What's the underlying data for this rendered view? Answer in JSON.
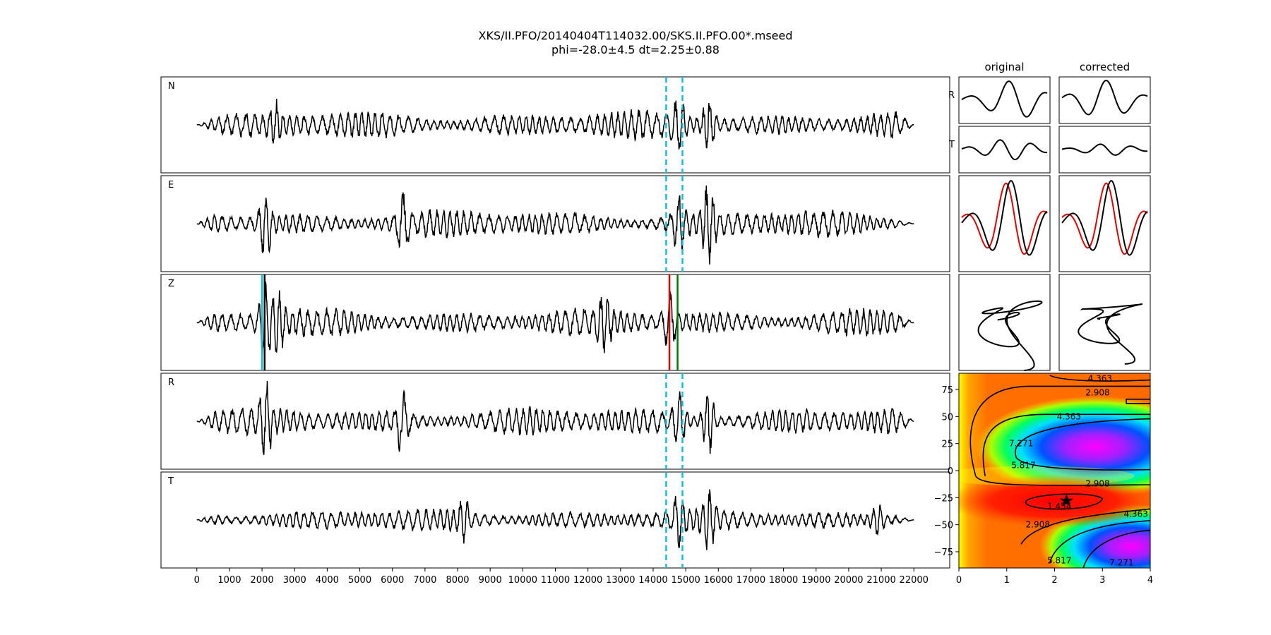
{
  "title": {
    "line1": "XKS/II.PFO/20140404T114032.00/SKS.II.PFO.00*.mseed",
    "line2": "phi=-28.0±4.5 dt=2.25±0.88"
  },
  "colors": {
    "trace": "#000000",
    "window_line": "#17becf",
    "pick_red": "#e00000",
    "pick_green": "#007a00",
    "pick_cyan": "#17becf",
    "overlay_red": "#e00000"
  },
  "chart_data": [
    {
      "type": "line",
      "id": "traces",
      "x_ticks": [
        0,
        1000,
        2000,
        3000,
        4000,
        5000,
        6000,
        7000,
        8000,
        9000,
        10000,
        11000,
        12000,
        13000,
        14000,
        15000,
        16000,
        17000,
        18000,
        19000,
        20000,
        21000,
        22000
      ],
      "x_tick_labels": [
        "0",
        "1000",
        "2000",
        "3000",
        "4000",
        "5000",
        "6000",
        "7000",
        "8000",
        "9000",
        "10000",
        "11000",
        "12000",
        "13000",
        "14000",
        "15000",
        "16000",
        "17000",
        "18000",
        "19000",
        "20000",
        "21000",
        "22000"
      ],
      "xlim": [
        -1100,
        23100
      ],
      "x_start": 0,
      "x_end": 22000,
      "panels": [
        {
          "label": "N",
          "amplitude": 0.3,
          "seed": 11,
          "bursts": [
            [
              15700,
              0.55
            ],
            [
              14800,
              0.5
            ],
            [
              2400,
              0.35
            ]
          ]
        },
        {
          "label": "E",
          "amplitude": 0.3,
          "seed": 23,
          "bursts": [
            [
              2100,
              0.75
            ],
            [
              6300,
              0.6
            ],
            [
              15700,
              0.8
            ],
            [
              14800,
              0.55
            ]
          ]
        },
        {
          "label": "Z",
          "amplitude": 0.3,
          "seed": 37,
          "bursts": [
            [
              2100,
              0.85
            ],
            [
              2500,
              0.6
            ],
            [
              12500,
              0.45
            ],
            [
              14500,
              0.55
            ]
          ]
        },
        {
          "label": "R",
          "amplitude": 0.3,
          "seed": 41,
          "bursts": [
            [
              2100,
              0.7
            ],
            [
              6300,
              0.6
            ],
            [
              15700,
              0.75
            ],
            [
              14800,
              0.6
            ]
          ]
        },
        {
          "label": "T",
          "amplitude": 0.22,
          "seed": 53,
          "bursts": [
            [
              8200,
              0.35
            ],
            [
              15700,
              0.5
            ],
            [
              14800,
              0.5
            ],
            [
              20900,
              0.35
            ]
          ]
        }
      ],
      "window_lines": [
        14400,
        14900
      ],
      "z_picks": [
        {
          "x": 2000,
          "color": "cyan"
        },
        {
          "x": 2080,
          "color": "black"
        },
        {
          "x": 14500,
          "color": "red"
        },
        {
          "x": 14750,
          "color": "green"
        }
      ]
    },
    {
      "type": "line",
      "id": "particle_panels",
      "column_titles": [
        "original",
        "corrected"
      ],
      "row_labels": [
        "R",
        "T"
      ]
    },
    {
      "type": "heatmap",
      "id": "error_surface",
      "x_ticks": [
        0,
        1,
        2,
        3,
        4
      ],
      "x_tick_labels": [
        "0",
        "1",
        "2",
        "3",
        "4"
      ],
      "xlim": [
        0,
        4
      ],
      "y_ticks": [
        75,
        50,
        25,
        0,
        -25,
        -50,
        -75
      ],
      "y_tick_labels": [
        "75",
        "50",
        "25",
        "0",
        "−25",
        "−50",
        "−75"
      ],
      "ylim": [
        -90,
        90
      ],
      "contour_labels": [
        "4.363",
        "2.908",
        "4.363",
        "7.271",
        "5.817",
        "2.908",
        "1.454",
        "4.363",
        "2.908",
        "5.817",
        "7.271",
        "5.817"
      ],
      "best_fit": {
        "dt": 2.25,
        "phi": -28.0
      },
      "marker": "star"
    }
  ]
}
